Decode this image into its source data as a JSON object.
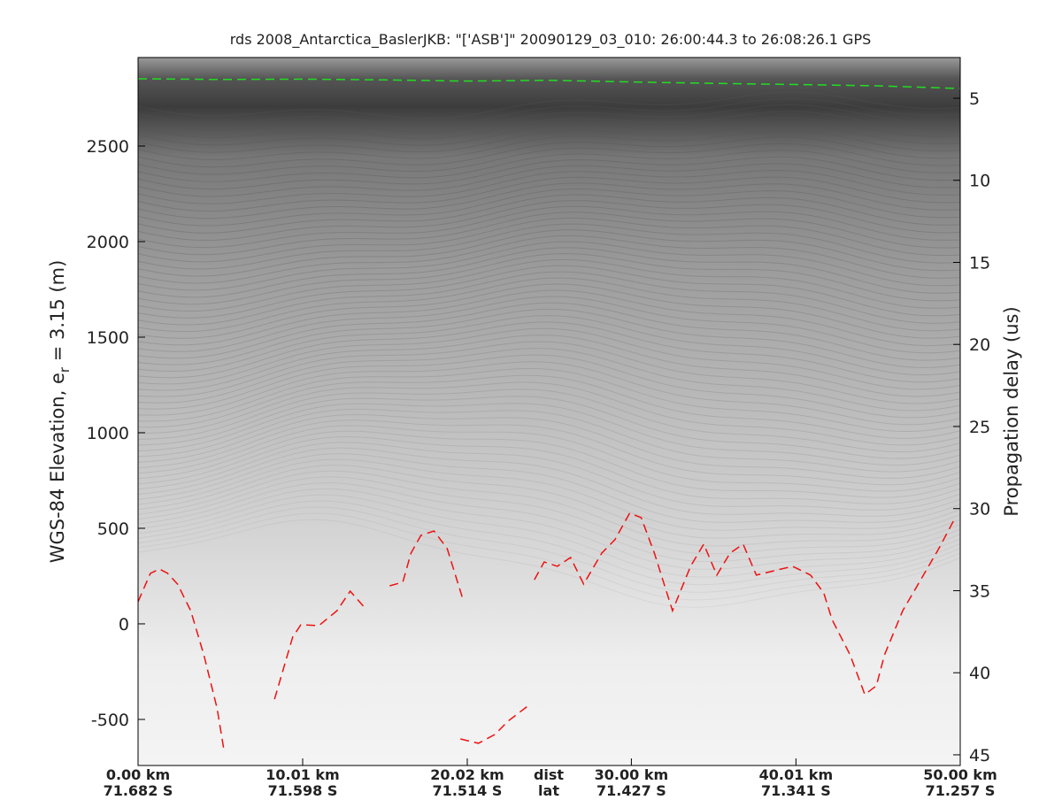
{
  "chart_data": {
    "type": "line",
    "title": "rds 2008_Antarctica_BaslerJKB: \"['ASB']\"  20090129_03_010: 26:00:44.3 to 26:08:26.1 GPS",
    "y_label": [
      "WGS-84 Elevation, e",
      "r",
      " = 3.15 (m)"
    ],
    "y2_label": "Propagation delay (us)",
    "xlim": [
      0,
      50
    ],
    "xticks": [
      {
        "value": 0,
        "label": "0.00 km"
      },
      {
        "value": 10.01,
        "label": "10.01 km"
      },
      {
        "value": 20.02,
        "label": "20.02 km"
      },
      {
        "value": 30.0,
        "label": "30.00 km"
      },
      {
        "value": 40.01,
        "label": "40.01 km"
      },
      {
        "value": 50.0,
        "label": "50.00 km"
      }
    ],
    "xticks_lat": [
      "71.682 S",
      "71.598 S",
      "71.514 S",
      "71.427 S",
      "71.341 S",
      "71.257 S"
    ],
    "x_axis_names": [
      "dist",
      "lat"
    ],
    "ylim": [
      -741,
      2963
    ],
    "yticks": [
      -500,
      0,
      500,
      1000,
      1500,
      2000,
      2500
    ],
    "y2lim": [
      2.52,
      45.65
    ],
    "y2ticks": [
      5,
      10,
      15,
      20,
      25,
      30,
      35,
      40,
      45
    ],
    "series": [
      {
        "color": "#22dd22",
        "x": [
          0,
          5,
          10,
          15,
          20,
          25,
          30,
          35,
          40,
          45,
          50
        ],
        "values": [
          2852,
          2848,
          2850,
          2846,
          2840,
          2844,
          2835,
          2828,
          2822,
          2815,
          2801
        ]
      },
      {
        "color": "#ee1111",
        "x": [
          0,
          0.75,
          1.3,
          1.8,
          2.4,
          3.2,
          4.0,
          4.8,
          5.2,
          6,
          8.3,
          9.4,
          9.9,
          11.0,
          12.1,
          12.9,
          13.7,
          14.5,
          15.3,
          16.1,
          16.6,
          17.2,
          18.0,
          18.8,
          19.8,
          19.7,
          19.6,
          20.7,
          21.7,
          22.5,
          23.9,
          24.0,
          24.1,
          24.7,
          25.5,
          26.3,
          27.1,
          28.2,
          29.0,
          29.9,
          30.6,
          31.4,
          32.5,
          33.6,
          34.4,
          35.2,
          36.0,
          36.8,
          37.6,
          38.7,
          39.8,
          40.9,
          41.7,
          42.2,
          43.3,
          44.2,
          44.9,
          45.4,
          46.5,
          47.6,
          48.7,
          49.7
        ],
        "values": [
          116,
          264,
          287,
          264,
          208,
          69,
          -162,
          -440,
          -648,
          null,
          -394,
          -69,
          -5,
          -9,
          69,
          171,
          93,
          null,
          199,
          218,
          370,
          463,
          486,
          394,
          116,
          null,
          -602,
          -625,
          -579,
          -509,
          -417,
          null,
          231,
          324,
          301,
          347,
          208,
          370,
          440,
          579,
          556,
          370,
          69,
          301,
          417,
          255,
          370,
          417,
          255,
          278,
          301,
          255,
          162,
          23,
          -162,
          -370,
          -324,
          -162,
          69,
          231,
          394,
          556
        ]
      }
    ]
  }
}
